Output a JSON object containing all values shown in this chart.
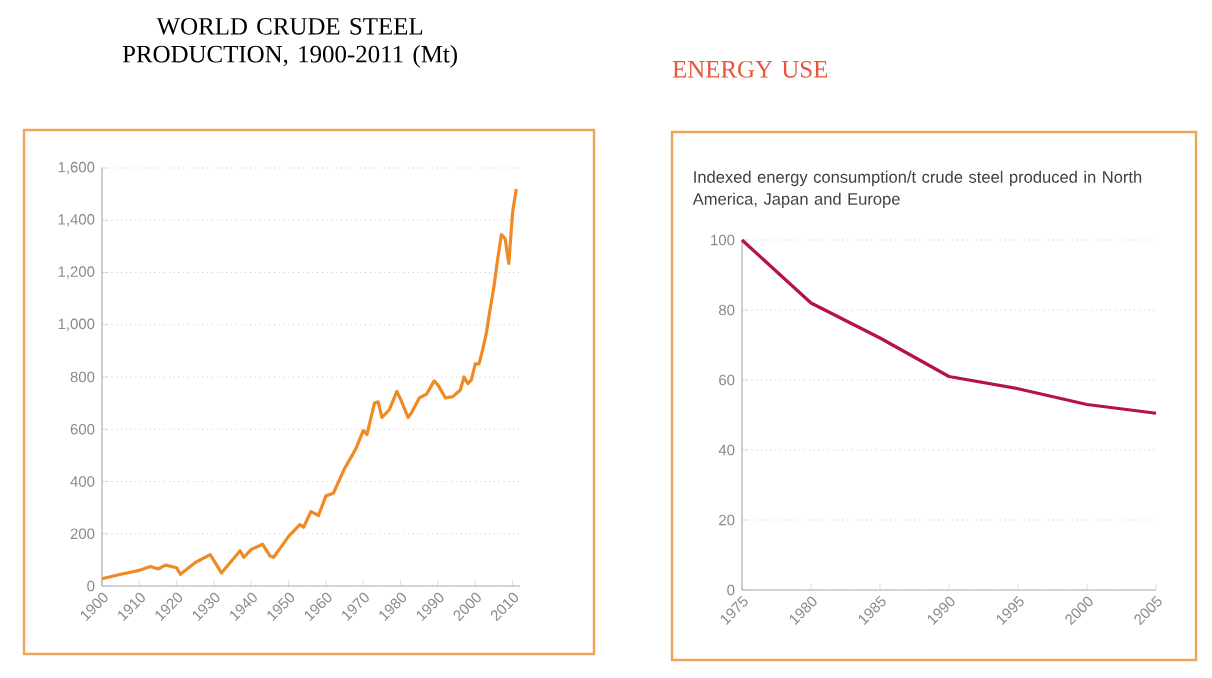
{
  "chart_data": [
    {
      "type": "line",
      "title": "WORLD CRUDE STEEL PRODUCTION, 1900-2011 (Mt)",
      "xlim": [
        1900,
        2012
      ],
      "xticks": [
        1900,
        1910,
        1920,
        1930,
        1940,
        1950,
        1960,
        1970,
        1980,
        1990,
        2000,
        2010
      ],
      "ylim": [
        0,
        1600
      ],
      "yticks": [
        0,
        200,
        400,
        600,
        800,
        {
          "value": 1000,
          "label": "1,000"
        },
        {
          "value": 1200,
          "label": "1,200"
        },
        {
          "value": 1400,
          "label": "1,400"
        },
        {
          "value": 1600,
          "label": "1,600"
        }
      ],
      "grid": "y",
      "marker": "none",
      "line_style": "solid",
      "series": [
        {
          "color": "#f08a24",
          "x": [
            1900,
            1905,
            1910,
            1913,
            1915,
            1917,
            1920,
            1921,
            1925,
            1929,
            1932,
            1937,
            1938,
            1940,
            1943,
            1945,
            1946,
            1950,
            1953,
            1954,
            1956,
            1958,
            1960,
            1962,
            1965,
            1968,
            1970,
            1971,
            1973,
            1974,
            1975,
            1977,
            1979,
            1980,
            1982,
            1983,
            1985,
            1987,
            1989,
            1990,
            1992,
            1994,
            1996,
            1997,
            1998,
            1999,
            2000,
            2001,
            2002,
            2003,
            2004,
            2005,
            2006,
            2007,
            2008,
            2009,
            2010,
            2011
          ],
          "values": [
            28,
            45,
            60,
            75,
            65,
            80,
            70,
            45,
            90,
            120,
            50,
            135,
            110,
            140,
            160,
            115,
            110,
            190,
            235,
            225,
            285,
            270,
            345,
            355,
            450,
            525,
            595,
            580,
            700,
            705,
            645,
            675,
            745,
            715,
            645,
            665,
            720,
            735,
            785,
            770,
            720,
            725,
            750,
            800,
            775,
            790,
            850,
            850,
            905,
            970,
            1060,
            1145,
            1250,
            1345,
            1330,
            1235,
            1430,
            1520
          ]
        }
      ]
    },
    {
      "type": "line",
      "title": "ENERGY USE",
      "subtitle": "Indexed energy consumption/t crude steel produced in North America, Japan and Europe",
      "xlim": [
        1975,
        2005
      ],
      "xticks": [
        1975,
        1980,
        1985,
        1990,
        1995,
        2000,
        2005
      ],
      "ylim": [
        0,
        100
      ],
      "yticks": [
        0,
        20,
        40,
        60,
        80,
        100
      ],
      "grid": "y",
      "marker": "none",
      "line_style": "solid",
      "series": [
        {
          "color": "#b5124a",
          "x": [
            1975,
            1980,
            1985,
            1990,
            1995,
            2000,
            2005
          ],
          "values": [
            100,
            82,
            72,
            61,
            57.5,
            53,
            50.5
          ]
        }
      ]
    }
  ]
}
